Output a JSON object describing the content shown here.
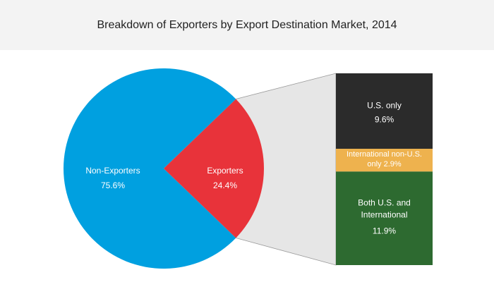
{
  "colors": {
    "non_exporters": "#00a0e0",
    "exporters": "#e8333a",
    "us_only": "#2b2b2b",
    "international_non_us": "#eeb24e",
    "both": "#2d6a30",
    "connector": "#e6e6e6",
    "title_bg": "#f3f3f3"
  },
  "chart_data": {
    "type": "pie",
    "title": "Breakdown of Exporters by Export Destination Market, 2014",
    "slices": [
      {
        "name": "Non-Exporters",
        "value": 75.6,
        "label": "75.6%"
      },
      {
        "name": "Exporters",
        "value": 24.4,
        "label": "24.4%"
      }
    ],
    "breakdown": {
      "of": "Exporters",
      "segments": [
        {
          "name": "U.S. only",
          "value": 9.6,
          "label": "9.6%"
        },
        {
          "name": "International non-U.S. only",
          "value": 2.9,
          "label": "2.9%"
        },
        {
          "name": "Both U.S. and International",
          "value": 11.9,
          "label": "11.9%"
        }
      ]
    }
  }
}
